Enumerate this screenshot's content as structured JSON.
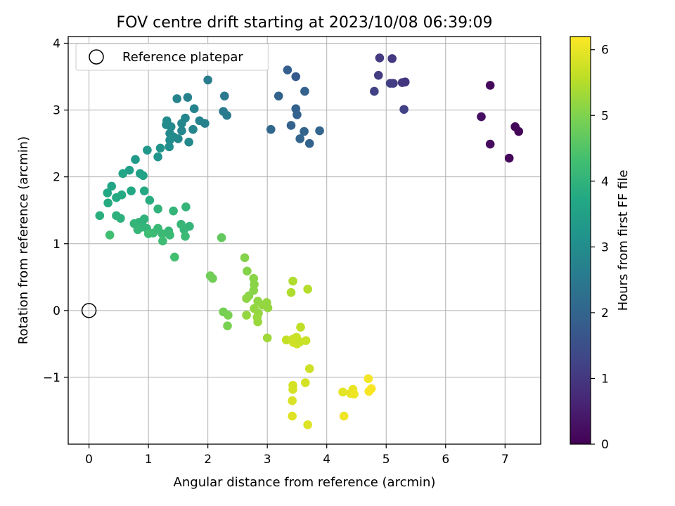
{
  "chart_data": {
    "type": "scatter",
    "title": "FOV centre drift starting at 2023/10/08 06:39:09",
    "xlabel": "Angular distance from reference (arcmin)",
    "ylabel": "Rotation from reference (arcmin)",
    "xlim": [
      -0.35,
      7.6
    ],
    "ylim": [
      -2.0,
      4.1
    ],
    "xticks": [
      0,
      1,
      2,
      3,
      4,
      5,
      6,
      7
    ],
    "yticks": [
      -1,
      0,
      1,
      2,
      3,
      4
    ],
    "grid": true,
    "colormap": "viridis",
    "colorbar": {
      "label": "Hours from first FF file",
      "range": [
        0,
        6.2
      ],
      "ticks": [
        0,
        1,
        2,
        3,
        4,
        5,
        6
      ]
    },
    "legend": {
      "placement": "top-left",
      "entries": [
        "Reference platepar"
      ]
    },
    "reference_point": {
      "x": 0,
      "y": 0,
      "label": "Reference platepar"
    },
    "points": [
      {
        "x": 6.75,
        "y": 3.37,
        "c": 0.15
      },
      {
        "x": 6.6,
        "y": 2.9,
        "c": 0.25
      },
      {
        "x": 6.75,
        "y": 2.49,
        "c": 0.2
      },
      {
        "x": 7.07,
        "y": 2.28,
        "c": 0.1
      },
      {
        "x": 7.17,
        "y": 2.75,
        "c": 0.05
      },
      {
        "x": 7.23,
        "y": 2.68,
        "c": 0.05
      },
      {
        "x": 4.89,
        "y": 3.78,
        "c": 1.05
      },
      {
        "x": 5.1,
        "y": 3.77,
        "c": 1.0
      },
      {
        "x": 4.87,
        "y": 3.52,
        "c": 1.1
      },
      {
        "x": 5.07,
        "y": 3.4,
        "c": 1.15
      },
      {
        "x": 5.12,
        "y": 3.4,
        "c": 1.1
      },
      {
        "x": 5.27,
        "y": 3.41,
        "c": 1.0
      },
      {
        "x": 5.32,
        "y": 3.42,
        "c": 0.95
      },
      {
        "x": 4.8,
        "y": 3.28,
        "c": 1.2
      },
      {
        "x": 5.3,
        "y": 3.01,
        "c": 1.2
      },
      {
        "x": 3.34,
        "y": 3.6,
        "c": 1.85
      },
      {
        "x": 3.48,
        "y": 3.5,
        "c": 1.75
      },
      {
        "x": 3.19,
        "y": 3.21,
        "c": 1.95
      },
      {
        "x": 3.63,
        "y": 3.28,
        "c": 1.9
      },
      {
        "x": 3.48,
        "y": 3.02,
        "c": 1.9
      },
      {
        "x": 3.5,
        "y": 2.93,
        "c": 1.9
      },
      {
        "x": 3.06,
        "y": 2.71,
        "c": 2.05
      },
      {
        "x": 3.4,
        "y": 2.77,
        "c": 1.95
      },
      {
        "x": 3.62,
        "y": 2.68,
        "c": 2.0
      },
      {
        "x": 3.55,
        "y": 2.57,
        "c": 2.0
      },
      {
        "x": 3.71,
        "y": 2.5,
        "c": 1.95
      },
      {
        "x": 3.88,
        "y": 2.69,
        "c": 2.0
      },
      {
        "x": 2.0,
        "y": 3.45,
        "c": 2.55
      },
      {
        "x": 2.28,
        "y": 3.21,
        "c": 2.5
      },
      {
        "x": 2.26,
        "y": 2.98,
        "c": 2.5
      },
      {
        "x": 2.32,
        "y": 2.92,
        "c": 2.55
      },
      {
        "x": 1.66,
        "y": 3.19,
        "c": 2.7
      },
      {
        "x": 1.48,
        "y": 3.17,
        "c": 2.75
      },
      {
        "x": 1.77,
        "y": 3.02,
        "c": 2.75
      },
      {
        "x": 1.62,
        "y": 2.88,
        "c": 2.8
      },
      {
        "x": 1.86,
        "y": 2.84,
        "c": 2.75
      },
      {
        "x": 1.95,
        "y": 2.8,
        "c": 2.7
      },
      {
        "x": 1.56,
        "y": 2.8,
        "c": 2.85
      },
      {
        "x": 1.75,
        "y": 2.71,
        "c": 2.8
      },
      {
        "x": 1.56,
        "y": 2.69,
        "c": 2.85
      },
      {
        "x": 1.31,
        "y": 2.84,
        "c": 2.95
      },
      {
        "x": 1.3,
        "y": 2.78,
        "c": 2.95
      },
      {
        "x": 1.38,
        "y": 2.75,
        "c": 2.9
      },
      {
        "x": 1.36,
        "y": 2.65,
        "c": 2.9
      },
      {
        "x": 1.42,
        "y": 2.6,
        "c": 2.95
      },
      {
        "x": 1.5,
        "y": 2.57,
        "c": 2.9
      },
      {
        "x": 1.36,
        "y": 2.55,
        "c": 3.0
      },
      {
        "x": 1.35,
        "y": 2.45,
        "c": 3.05
      },
      {
        "x": 1.68,
        "y": 2.52,
        "c": 2.9
      },
      {
        "x": 1.2,
        "y": 2.43,
        "c": 3.15
      },
      {
        "x": 0.98,
        "y": 2.4,
        "c": 3.25
      },
      {
        "x": 1.16,
        "y": 2.3,
        "c": 3.2
      },
      {
        "x": 0.78,
        "y": 2.26,
        "c": 3.35
      },
      {
        "x": 0.68,
        "y": 2.1,
        "c": 3.5
      },
      {
        "x": 0.86,
        "y": 2.05,
        "c": 3.5
      },
      {
        "x": 0.91,
        "y": 2.02,
        "c": 3.55
      },
      {
        "x": 0.57,
        "y": 2.05,
        "c": 3.6
      },
      {
        "x": 0.38,
        "y": 1.86,
        "c": 3.65
      },
      {
        "x": 0.31,
        "y": 1.76,
        "c": 3.7
      },
      {
        "x": 0.71,
        "y": 1.79,
        "c": 3.7
      },
      {
        "x": 0.55,
        "y": 1.73,
        "c": 3.75
      },
      {
        "x": 0.46,
        "y": 1.69,
        "c": 3.75
      },
      {
        "x": 0.93,
        "y": 1.79,
        "c": 3.75
      },
      {
        "x": 0.32,
        "y": 1.61,
        "c": 3.8
      },
      {
        "x": 1.02,
        "y": 1.65,
        "c": 3.85
      },
      {
        "x": 0.18,
        "y": 1.42,
        "c": 3.9
      },
      {
        "x": 0.46,
        "y": 1.42,
        "c": 3.95
      },
      {
        "x": 0.53,
        "y": 1.38,
        "c": 3.95
      },
      {
        "x": 0.93,
        "y": 1.37,
        "c": 4.0
      },
      {
        "x": 0.76,
        "y": 1.3,
        "c": 4.05
      },
      {
        "x": 0.84,
        "y": 1.32,
        "c": 4.05
      },
      {
        "x": 0.89,
        "y": 1.3,
        "c": 4.0
      },
      {
        "x": 0.86,
        "y": 1.24,
        "c": 4.05
      },
      {
        "x": 0.82,
        "y": 1.21,
        "c": 4.1
      },
      {
        "x": 0.97,
        "y": 1.23,
        "c": 4.05
      },
      {
        "x": 1.16,
        "y": 1.52,
        "c": 4.0
      },
      {
        "x": 1.42,
        "y": 1.49,
        "c": 4.05
      },
      {
        "x": 1.63,
        "y": 1.55,
        "c": 4.05
      },
      {
        "x": 1.55,
        "y": 1.29,
        "c": 4.1
      },
      {
        "x": 1.69,
        "y": 1.26,
        "c": 4.05
      },
      {
        "x": 1.6,
        "y": 1.21,
        "c": 4.1
      },
      {
        "x": 1.16,
        "y": 1.23,
        "c": 4.15
      },
      {
        "x": 1.34,
        "y": 1.19,
        "c": 4.1
      },
      {
        "x": 1.08,
        "y": 1.16,
        "c": 4.2
      },
      {
        "x": 1.23,
        "y": 1.15,
        "c": 4.2
      },
      {
        "x": 1.0,
        "y": 1.15,
        "c": 4.25
      },
      {
        "x": 1.36,
        "y": 1.13,
        "c": 4.15
      },
      {
        "x": 1.62,
        "y": 1.11,
        "c": 4.2
      },
      {
        "x": 1.24,
        "y": 1.04,
        "c": 4.25
      },
      {
        "x": 0.35,
        "y": 1.13,
        "c": 4.3
      },
      {
        "x": 1.44,
        "y": 0.8,
        "c": 4.3
      },
      {
        "x": 2.23,
        "y": 1.09,
        "c": 4.7
      },
      {
        "x": 2.04,
        "y": 0.52,
        "c": 4.85
      },
      {
        "x": 2.08,
        "y": 0.48,
        "c": 4.85
      },
      {
        "x": 2.26,
        "y": -0.02,
        "c": 4.9
      },
      {
        "x": 2.34,
        "y": -0.07,
        "c": 4.95
      },
      {
        "x": 2.33,
        "y": -0.23,
        "c": 4.95
      },
      {
        "x": 2.62,
        "y": 0.79,
        "c": 5.05
      },
      {
        "x": 2.66,
        "y": 0.59,
        "c": 5.05
      },
      {
        "x": 2.77,
        "y": 0.48,
        "c": 5.1
      },
      {
        "x": 2.78,
        "y": 0.39,
        "c": 5.1
      },
      {
        "x": 2.77,
        "y": 0.3,
        "c": 5.1
      },
      {
        "x": 2.69,
        "y": 0.22,
        "c": 5.1
      },
      {
        "x": 2.65,
        "y": 0.18,
        "c": 5.15
      },
      {
        "x": 2.84,
        "y": 0.14,
        "c": 5.15
      },
      {
        "x": 2.99,
        "y": 0.12,
        "c": 5.2
      },
      {
        "x": 2.92,
        "y": 0.08,
        "c": 5.2
      },
      {
        "x": 2.78,
        "y": 0.03,
        "c": 5.2
      },
      {
        "x": 3.01,
        "y": 0.04,
        "c": 5.2
      },
      {
        "x": 2.85,
        "y": -0.04,
        "c": 5.2
      },
      {
        "x": 2.83,
        "y": -0.1,
        "c": 5.25
      },
      {
        "x": 2.65,
        "y": -0.07,
        "c": 5.2
      },
      {
        "x": 2.84,
        "y": -0.17,
        "c": 5.25
      },
      {
        "x": 3.0,
        "y": -0.41,
        "c": 5.3
      },
      {
        "x": 3.43,
        "y": 0.44,
        "c": 5.45
      },
      {
        "x": 3.68,
        "y": 0.32,
        "c": 5.5
      },
      {
        "x": 3.4,
        "y": 0.27,
        "c": 5.45
      },
      {
        "x": 3.56,
        "y": -0.25,
        "c": 5.6
      },
      {
        "x": 3.32,
        "y": -0.44,
        "c": 5.65
      },
      {
        "x": 3.43,
        "y": -0.43,
        "c": 5.7
      },
      {
        "x": 3.49,
        "y": -0.4,
        "c": 5.7
      },
      {
        "x": 3.44,
        "y": -0.48,
        "c": 5.75
      },
      {
        "x": 3.5,
        "y": -0.5,
        "c": 5.75
      },
      {
        "x": 3.55,
        "y": -0.47,
        "c": 5.7
      },
      {
        "x": 3.65,
        "y": -0.45,
        "c": 5.7
      },
      {
        "x": 3.71,
        "y": -0.87,
        "c": 5.75
      },
      {
        "x": 3.64,
        "y": -1.08,
        "c": 5.8
      },
      {
        "x": 3.43,
        "y": -1.12,
        "c": 5.8
      },
      {
        "x": 3.43,
        "y": -1.18,
        "c": 5.8
      },
      {
        "x": 3.42,
        "y": -1.35,
        "c": 5.85
      },
      {
        "x": 3.42,
        "y": -1.58,
        "c": 5.9
      },
      {
        "x": 3.68,
        "y": -1.71,
        "c": 5.9
      },
      {
        "x": 4.27,
        "y": -1.22,
        "c": 5.95
      },
      {
        "x": 4.4,
        "y": -1.24,
        "c": 6.0
      },
      {
        "x": 4.44,
        "y": -1.18,
        "c": 6.0
      },
      {
        "x": 4.46,
        "y": -1.25,
        "c": 6.05
      },
      {
        "x": 4.29,
        "y": -1.58,
        "c": 6.05
      },
      {
        "x": 4.7,
        "y": -1.02,
        "c": 6.1
      },
      {
        "x": 4.75,
        "y": -1.17,
        "c": 6.15
      },
      {
        "x": 4.71,
        "y": -1.21,
        "c": 6.15
      }
    ]
  }
}
